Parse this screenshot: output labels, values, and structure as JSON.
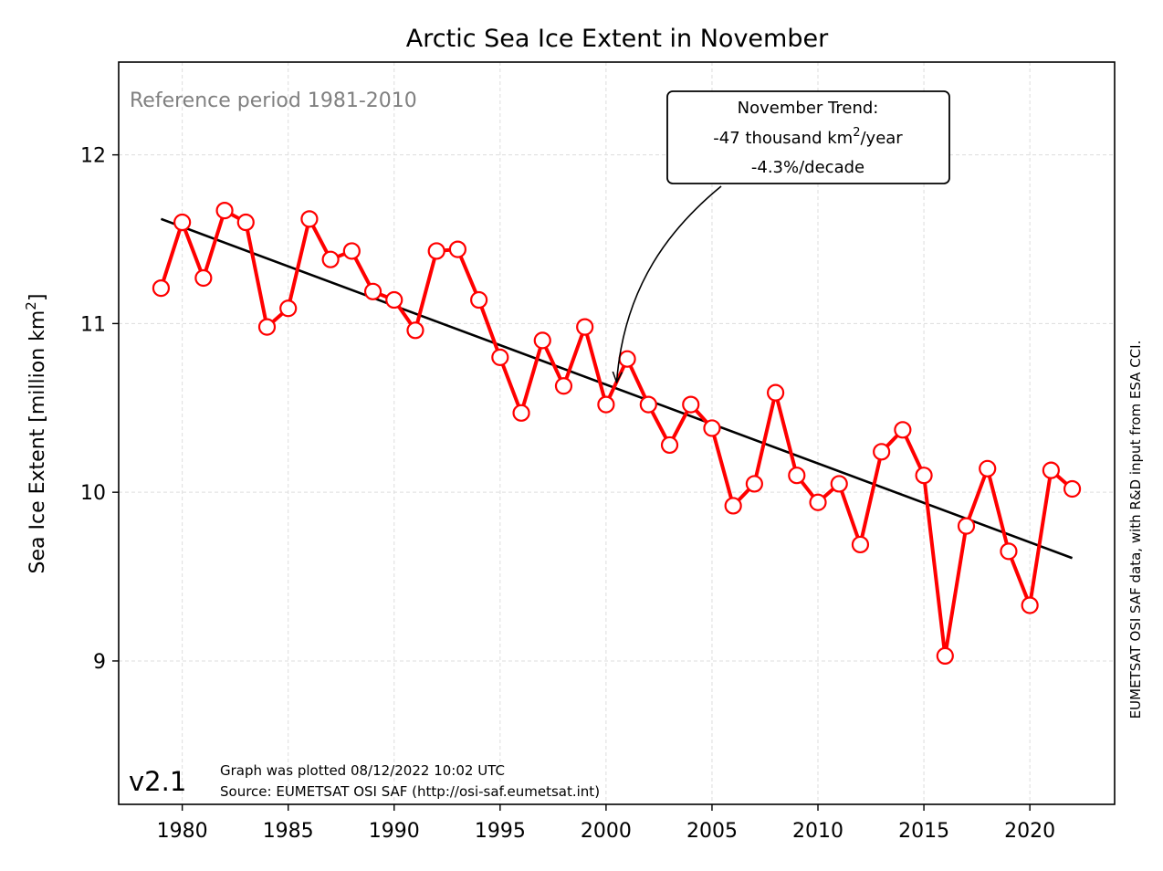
{
  "chart_data": {
    "type": "line",
    "title": "Arctic Sea Ice Extent in November",
    "ylabel_main": "Sea Ice Extent [million km",
    "ylabel_sup": "2",
    "ylabel_close": "]",
    "xlim": [
      1977.0,
      2024.0
    ],
    "ylim": [
      8.15,
      12.55
    ],
    "grid": true,
    "x_ticks": [
      1980,
      1985,
      1990,
      1995,
      2000,
      2005,
      2010,
      2015,
      2020
    ],
    "y_ticks": [
      9,
      10,
      11,
      12
    ],
    "series": [
      {
        "color": "#ff0000",
        "x": [
          1979,
          1980,
          1981,
          1982,
          1983,
          1984,
          1985,
          1986,
          1987,
          1988,
          1989,
          1990,
          1991,
          1992,
          1993,
          1994,
          1995,
          1996,
          1997,
          1998,
          1999,
          2000,
          2001,
          2002,
          2003,
          2004,
          2005,
          2006,
          2007,
          2008,
          2009,
          2010,
          2011,
          2012,
          2013,
          2014,
          2015,
          2016,
          2017,
          2018,
          2019,
          2020,
          2021,
          2022
        ],
        "values": [
          11.21,
          11.6,
          11.27,
          11.67,
          11.6,
          10.98,
          11.09,
          11.62,
          11.38,
          11.43,
          11.19,
          11.14,
          10.96,
          11.43,
          11.44,
          11.14,
          10.8,
          10.47,
          10.9,
          10.63,
          10.98,
          10.52,
          10.79,
          10.52,
          10.28,
          10.52,
          10.38,
          9.92,
          10.05,
          10.59,
          10.1,
          9.94,
          10.05,
          9.69,
          10.24,
          10.37,
          10.1,
          9.03,
          9.8,
          10.14,
          9.65,
          9.33,
          10.13,
          10.02
        ]
      },
      {
        "color": "#000000",
        "type": "trend",
        "x": [
          1979,
          2022
        ],
        "values": [
          11.62,
          9.61
        ]
      }
    ],
    "annotations": {
      "reference": "Reference period 1981-2010",
      "trend_line1": "November Trend:",
      "trend_line2_main": "-47 thousand km",
      "trend_line2_sup": "2",
      "trend_line2_tail": "/year",
      "trend_line3": "-4.3%/decade",
      "trend_arrow_target": [
        2000.5,
        10.63
      ],
      "version": "v2.1",
      "footer_line1": "Graph was plotted 08/12/2022 10:02 UTC",
      "footer_line2": "Source: EUMETSAT OSI SAF (http://osi-saf.eumetsat.int)",
      "credit": "EUMETSAT OSI SAF data, with R&D input from ESA CCI."
    }
  }
}
